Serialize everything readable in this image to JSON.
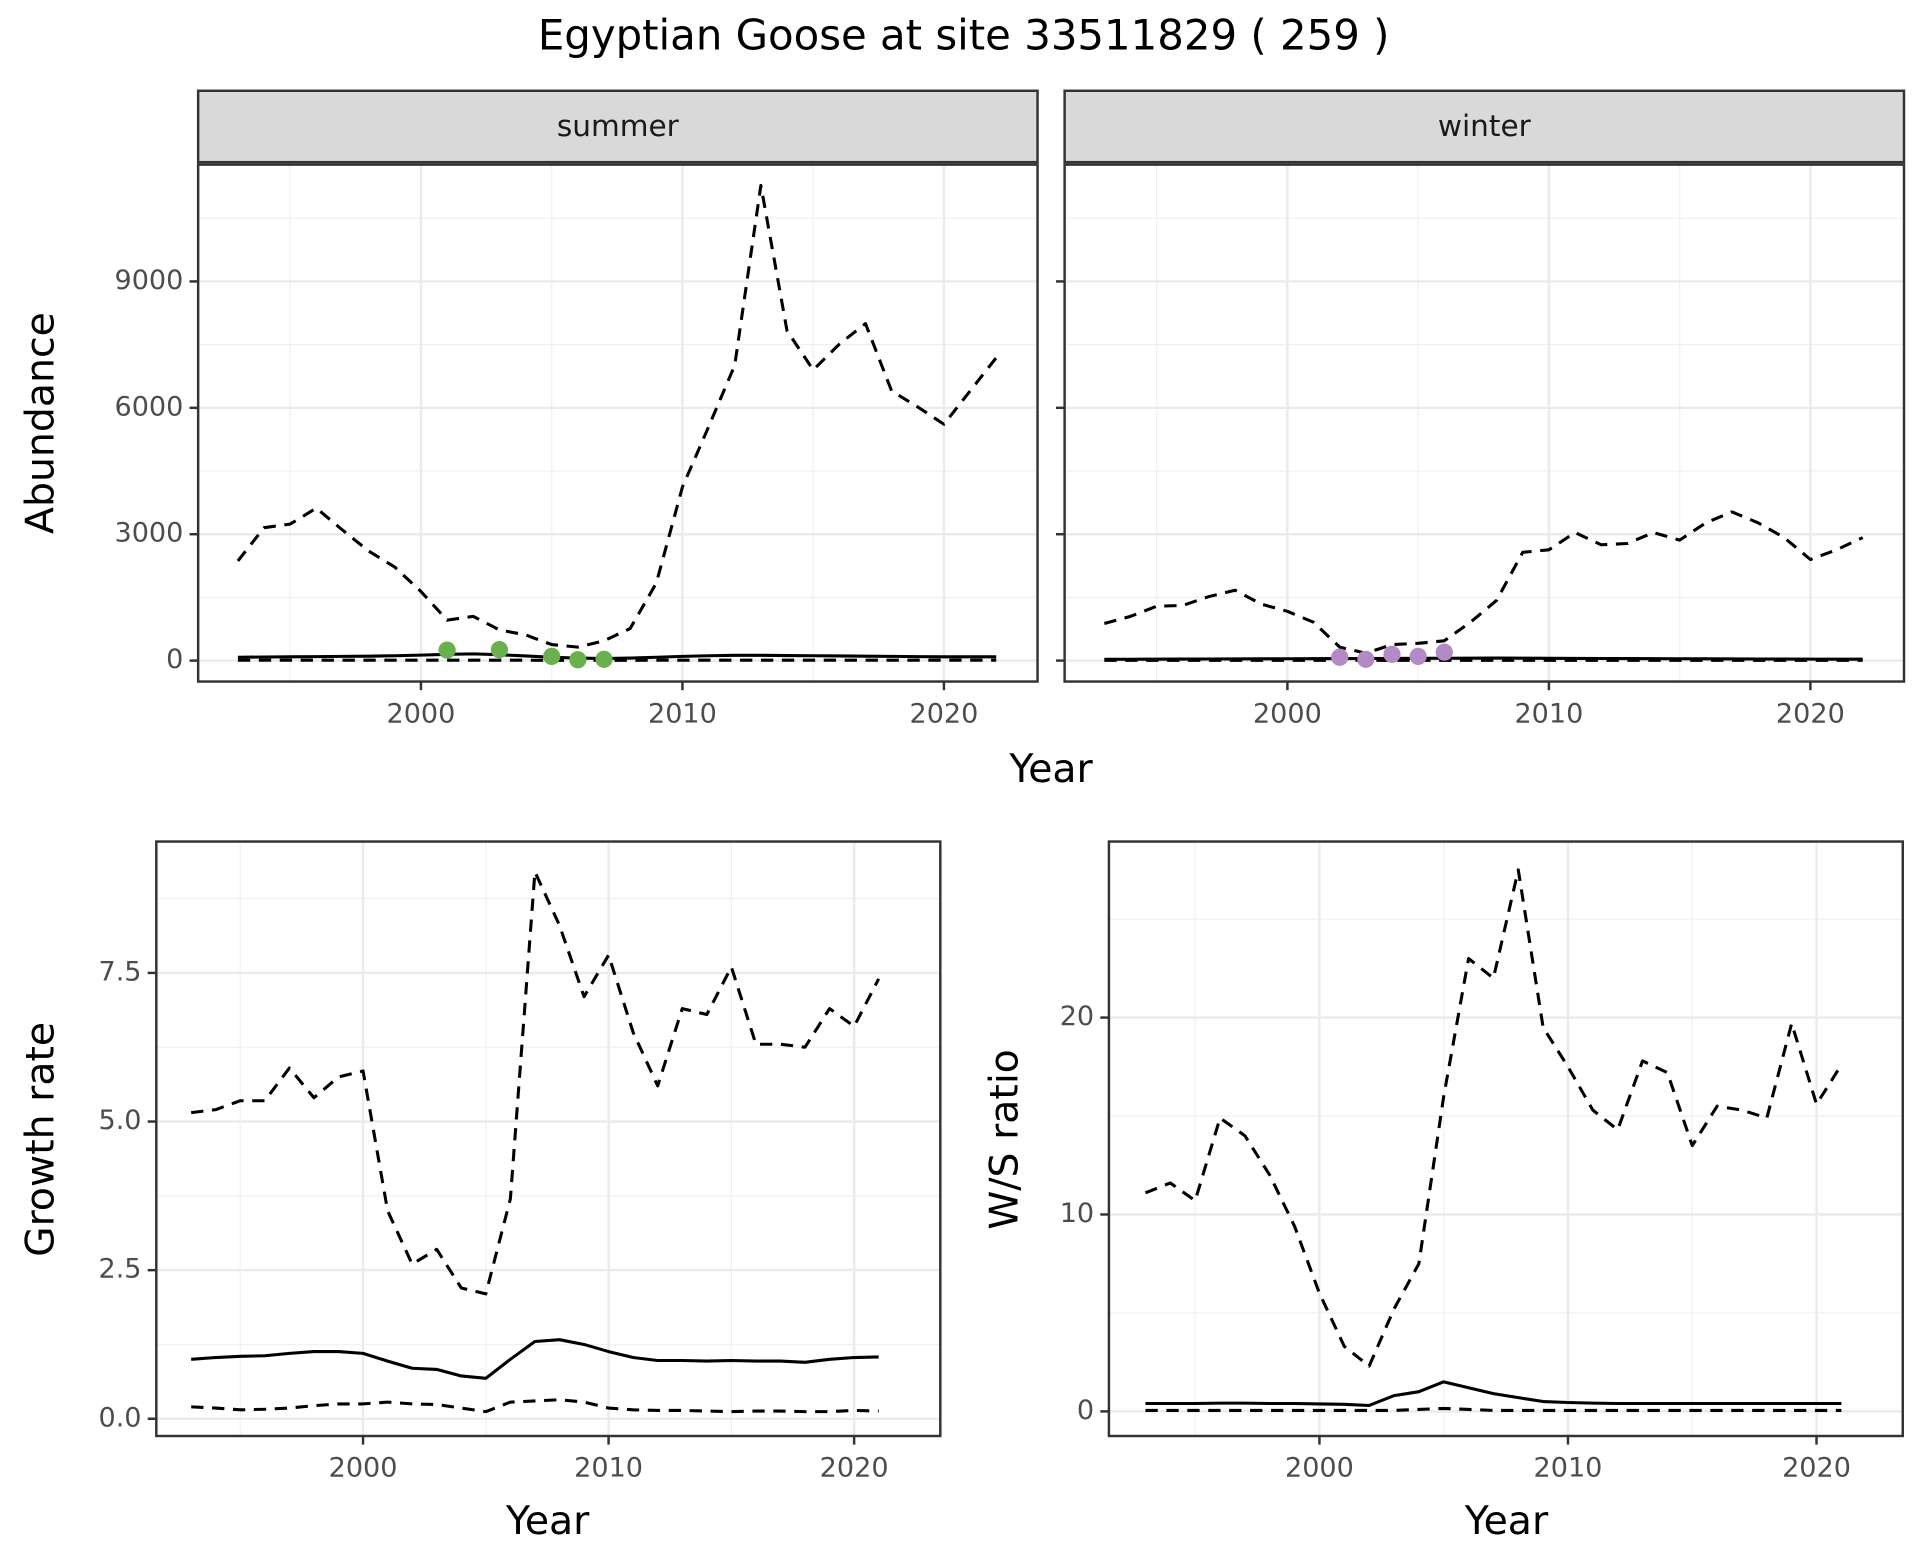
{
  "title": "Egyptian Goose at site 33511829 ( 259 )",
  "chart_data": [
    {
      "type": "line",
      "facet": "summer",
      "ylabel": "Abundance",
      "xlabel": "Year",
      "xlim": [
        1991.48,
        2023.58
      ],
      "xticks": [
        2000,
        2010,
        2020
      ],
      "ylim": [
        -497,
        11773
      ],
      "yticks": [
        0,
        3000,
        6000,
        9000
      ],
      "grid": true,
      "minor_grid": true,
      "x": [
        1993,
        1994,
        1995,
        1996,
        1997,
        1998,
        1999,
        2000,
        2001,
        2002,
        2003,
        2004,
        2005,
        2006,
        2007,
        2008,
        2009,
        2010,
        2011,
        2012,
        2013,
        2014,
        2015,
        2016,
        2017,
        2018,
        2019,
        2020,
        2021,
        2022
      ],
      "series": [
        {
          "color": "#000000",
          "dash": false,
          "values": [
            80,
            85,
            90,
            95,
            100,
            105,
            115,
            130,
            150,
            160,
            140,
            110,
            80,
            60,
            50,
            60,
            80,
            100,
            115,
            125,
            125,
            120,
            115,
            110,
            105,
            100,
            95,
            90,
            90,
            90
          ]
        },
        {
          "color": "#000000",
          "dash": true,
          "values": [
            2366,
            3155,
            3240,
            3620,
            3100,
            2600,
            2220,
            1640,
            960,
            1050,
            730,
            610,
            380,
            320,
            470,
            760,
            1840,
            4120,
            5550,
            7010,
            11280,
            7830,
            6900,
            7510,
            8000,
            6400,
            6020,
            5610,
            6400,
            7190
          ]
        },
        {
          "color": "#000000",
          "dash": true,
          "values": [
            10,
            10,
            10,
            10,
            10,
            10,
            10,
            10,
            10,
            10,
            10,
            10,
            5,
            5,
            5,
            5,
            10,
            10,
            10,
            10,
            10,
            10,
            10,
            10,
            10,
            10,
            10,
            10,
            10,
            10
          ]
        },
        {
          "color": "#6ab04c",
          "marker": "point",
          "x": [
            2001,
            2003,
            2005,
            2006,
            2007
          ],
          "values": [
            250,
            260,
            100,
            20,
            30
          ]
        }
      ]
    },
    {
      "type": "line",
      "facet": "winter",
      "xlim": [
        1991.48,
        2023.58
      ],
      "xticks": [
        2000,
        2010,
        2020
      ],
      "grid": true,
      "minor_grid": true,
      "x": [
        1993,
        1994,
        1995,
        1996,
        1997,
        1998,
        1999,
        2000,
        2001,
        2002,
        2003,
        2004,
        2005,
        2006,
        2007,
        2008,
        2009,
        2010,
        2011,
        2012,
        2013,
        2014,
        2015,
        2016,
        2017,
        2018,
        2019,
        2020,
        2021,
        2022
      ],
      "series": [
        {
          "color": "#000000",
          "dash": false,
          "values": [
            30,
            32,
            34,
            36,
            38,
            40,
            42,
            44,
            46,
            48,
            50,
            52,
            54,
            56,
            58,
            60,
            58,
            55,
            52,
            50,
            48,
            46,
            44,
            42,
            40,
            38,
            36,
            35,
            34,
            33
          ]
        },
        {
          "color": "#000000",
          "dash": true,
          "values": [
            880,
            1050,
            1290,
            1310,
            1520,
            1670,
            1340,
            1170,
            910,
            320,
            175,
            380,
            410,
            470,
            910,
            1430,
            2570,
            2630,
            3040,
            2750,
            2780,
            3040,
            2860,
            3270,
            3530,
            3270,
            2920,
            2400,
            2630,
            2920
          ]
        },
        {
          "color": "#000000",
          "dash": true,
          "values": [
            5,
            5,
            5,
            5,
            5,
            5,
            5,
            5,
            5,
            5,
            5,
            5,
            5,
            5,
            5,
            5,
            5,
            5,
            5,
            5,
            5,
            5,
            5,
            5,
            5,
            5,
            5,
            5,
            5,
            5
          ]
        },
        {
          "color": "#b48ac6",
          "marker": "point",
          "x": [
            2002,
            2003,
            2004,
            2005,
            2006
          ],
          "values": [
            80,
            30,
            150,
            100,
            200
          ]
        }
      ]
    },
    {
      "type": "line",
      "ylabel": "Growth rate",
      "xlabel": "Year",
      "xlim": [
        1991.58,
        2023.51
      ],
      "xticks": [
        2000,
        2010,
        2020
      ],
      "ylim": [
        -0.29,
        9.71
      ],
      "yticks": [
        {
          "value": 0,
          "label": "0.0"
        },
        2.5,
        {
          "value": 5,
          "label": "5.0"
        },
        7.5
      ],
      "grid": true,
      "minor_grid": true,
      "x": [
        1993,
        1994,
        1995,
        1996,
        1997,
        1998,
        1999,
        2000,
        2001,
        2002,
        2003,
        2004,
        2005,
        2006,
        2007,
        2008,
        2009,
        2010,
        2011,
        2012,
        2013,
        2014,
        2015,
        2016,
        2017,
        2018,
        2019,
        2020,
        2021
      ],
      "series": [
        {
          "color": "#000000",
          "dash": false,
          "values": [
            1.0,
            1.03,
            1.05,
            1.06,
            1.1,
            1.13,
            1.13,
            1.1,
            0.97,
            0.85,
            0.83,
            0.72,
            0.68,
            1.0,
            1.3,
            1.33,
            1.25,
            1.13,
            1.03,
            0.98,
            0.98,
            0.97,
            0.98,
            0.97,
            0.97,
            0.95,
            1.0,
            1.03,
            1.04
          ]
        },
        {
          "color": "#000000",
          "dash": true,
          "values": [
            5.15,
            5.2,
            5.35,
            5.35,
            5.9,
            5.4,
            5.75,
            5.85,
            3.5,
            2.6,
            2.85,
            2.2,
            2.1,
            3.7,
            9.2,
            8.3,
            7.1,
            7.8,
            6.5,
            5.6,
            6.9,
            6.8,
            7.6,
            6.3,
            6.3,
            6.25,
            6.9,
            6.6,
            7.4
          ]
        },
        {
          "color": "#000000",
          "dash": true,
          "values": [
            0.2,
            0.18,
            0.15,
            0.16,
            0.18,
            0.22,
            0.25,
            0.25,
            0.28,
            0.25,
            0.24,
            0.18,
            0.12,
            0.28,
            0.3,
            0.32,
            0.28,
            0.18,
            0.15,
            0.14,
            0.14,
            0.13,
            0.12,
            0.13,
            0.13,
            0.12,
            0.12,
            0.14,
            0.13
          ]
        }
      ]
    },
    {
      "type": "line",
      "ylabel": "W/S ratio",
      "xlabel": "Year",
      "xlim": [
        1991.53,
        2023.47
      ],
      "xticks": [
        2000,
        2010,
        2020
      ],
      "ylim": [
        -1.25,
        28.94
      ],
      "yticks": [
        0,
        10,
        20
      ],
      "grid": true,
      "minor_grid": true,
      "x": [
        1993,
        1994,
        1995,
        1996,
        1997,
        1998,
        1999,
        2000,
        2001,
        2002,
        2003,
        2004,
        2005,
        2006,
        2007,
        2008,
        2009,
        2010,
        2011,
        2012,
        2013,
        2014,
        2015,
        2016,
        2017,
        2018,
        2019,
        2020,
        2021
      ],
      "series": [
        {
          "color": "#000000",
          "dash": false,
          "values": [
            0.4,
            0.4,
            0.4,
            0.42,
            0.42,
            0.4,
            0.4,
            0.38,
            0.36,
            0.3,
            0.8,
            1.0,
            1.5,
            1.2,
            0.9,
            0.7,
            0.5,
            0.45,
            0.42,
            0.4,
            0.4,
            0.4,
            0.4,
            0.4,
            0.4,
            0.4,
            0.4,
            0.4,
            0.4
          ]
        },
        {
          "color": "#000000",
          "dash": true,
          "values": [
            11.1,
            11.6,
            10.7,
            14.9,
            14.0,
            12.0,
            9.4,
            6.0,
            3.3,
            2.3,
            5.2,
            7.5,
            16.0,
            23.0,
            22.0,
            27.5,
            19.5,
            17.5,
            15.3,
            14.3,
            17.8,
            17.2,
            13.5,
            15.5,
            15.3,
            14.9,
            19.7,
            15.6,
            17.6
          ]
        },
        {
          "color": "#000000",
          "dash": true,
          "values": [
            0.05,
            0.05,
            0.05,
            0.05,
            0.05,
            0.05,
            0.05,
            0.05,
            0.05,
            0.05,
            0.05,
            0.1,
            0.15,
            0.1,
            0.05,
            0.05,
            0.05,
            0.05,
            0.05,
            0.05,
            0.05,
            0.05,
            0.05,
            0.05,
            0.05,
            0.05,
            0.05,
            0.05,
            0.05
          ]
        }
      ]
    }
  ]
}
